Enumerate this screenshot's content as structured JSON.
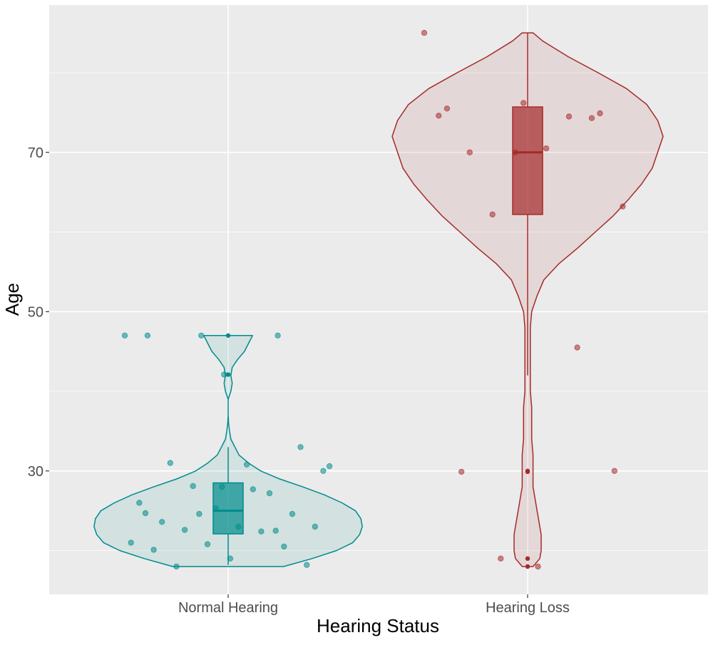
{
  "chart_data": {
    "type": "violin",
    "xlabel": "Hearing Status",
    "ylabel": "Age",
    "categories": [
      "Normal Hearing",
      "Hearing Loss"
    ],
    "ylim": [
      14.5,
      88.5
    ],
    "yticks": [
      30,
      50,
      70
    ],
    "grid": true,
    "legend": "none",
    "groups": [
      {
        "category": "Normal Hearing",
        "color": "#008B8B",
        "box": {
          "min": 18.2,
          "q1": 22.1,
          "median": 25.0,
          "q3": 28.5,
          "max": 33.0
        },
        "outliers": [
          42.1,
          47.0
        ],
        "violin": [
          [
            18.0,
            0.41
          ],
          [
            19.0,
            0.62
          ],
          [
            20.0,
            0.8
          ],
          [
            21.0,
            0.92
          ],
          [
            22.0,
            0.97
          ],
          [
            23.0,
            0.99
          ],
          [
            24.0,
            0.98
          ],
          [
            25.0,
            0.94
          ],
          [
            26.0,
            0.84
          ],
          [
            27.0,
            0.71
          ],
          [
            28.0,
            0.55
          ],
          [
            29.0,
            0.38
          ],
          [
            30.0,
            0.24
          ],
          [
            31.0,
            0.15
          ],
          [
            32.0,
            0.08
          ],
          [
            33.0,
            0.05
          ],
          [
            34.0,
            0.02
          ],
          [
            35.0,
            0.01
          ],
          [
            36.0,
            0.003
          ],
          [
            37.0,
            0.0
          ],
          [
            38.0,
            0.0
          ],
          [
            39.0,
            0.0
          ],
          [
            40.0,
            0.02
          ],
          [
            41.0,
            0.03
          ],
          [
            42.0,
            0.02
          ],
          [
            43.0,
            0.03
          ],
          [
            44.0,
            0.07
          ],
          [
            45.0,
            0.12
          ],
          [
            46.0,
            0.15
          ],
          [
            47.0,
            0.18
          ]
        ],
        "points": [
          [
            47.1,
            47.0
          ],
          [
            46.9,
            47.0
          ],
          [
            47.0,
            47.0
          ],
          [
            47.0,
            47.0
          ],
          [
            42.3,
            42.1
          ],
          [
            33.6,
            33.0
          ],
          [
            33.2,
            31.0
          ],
          [
            30.2,
            30.8
          ],
          [
            30.1,
            30.0
          ],
          [
            28.2,
            28.1
          ],
          [
            27.0,
            27.2
          ],
          [
            27.2,
            26.0
          ],
          [
            25.4,
            25.3
          ],
          [
            24.9,
            24.6
          ],
          [
            24.1,
            23.6
          ],
          [
            23.5,
            23.0
          ],
          [
            23.3,
            23.0
          ],
          [
            22.9,
            22.6
          ],
          [
            22.7,
            22.4
          ],
          [
            21.1,
            21.0
          ],
          [
            21.0,
            20.8
          ],
          [
            20.8,
            20.5
          ],
          [
            20.3,
            20.1
          ],
          [
            20.1,
            19.0
          ],
          [
            18.9,
            18.2
          ],
          [
            18.7,
            18.0
          ],
          [
            27.1,
            27.7
          ],
          [
            29.9,
            30.6
          ],
          [
            26.9,
            24.6
          ],
          [
            23.0,
            22.5
          ],
          [
            25.1,
            24.7
          ],
          [
            28.3,
            28.0
          ]
        ]
      },
      {
        "category": "Hearing Loss",
        "color": "#A52A2A",
        "box": {
          "min": 42.0,
          "q1": 62.2,
          "median": 70.0,
          "q3": 75.7,
          "max": 85.0
        },
        "outliers": [
          18.0,
          19.0,
          29.9,
          30.0
        ],
        "violin": [
          [
            18.0,
            0.04
          ],
          [
            19.0,
            0.09
          ],
          [
            20.0,
            0.1
          ],
          [
            21.0,
            0.1
          ],
          [
            22.0,
            0.1
          ],
          [
            23.0,
            0.09
          ],
          [
            24.0,
            0.08
          ],
          [
            25.0,
            0.07
          ],
          [
            26.0,
            0.06
          ],
          [
            27.0,
            0.05
          ],
          [
            28.0,
            0.04
          ],
          [
            29.0,
            0.04
          ],
          [
            30.0,
            0.04
          ],
          [
            32.0,
            0.04
          ],
          [
            34.0,
            0.03
          ],
          [
            36.0,
            0.03
          ],
          [
            38.0,
            0.03
          ],
          [
            40.0,
            0.02
          ],
          [
            42.0,
            0.02
          ],
          [
            44.0,
            0.02
          ],
          [
            46.0,
            0.02
          ],
          [
            48.0,
            0.02
          ],
          [
            50.0,
            0.03
          ],
          [
            52.0,
            0.07
          ],
          [
            54.0,
            0.12
          ],
          [
            56.0,
            0.23
          ],
          [
            58.0,
            0.37
          ],
          [
            60.0,
            0.5
          ],
          [
            62.0,
            0.63
          ],
          [
            64.0,
            0.74
          ],
          [
            66.0,
            0.84
          ],
          [
            68.0,
            0.92
          ],
          [
            70.0,
            0.96
          ],
          [
            72.0,
            1.0
          ],
          [
            74.0,
            0.96
          ],
          [
            76.0,
            0.88
          ],
          [
            78.0,
            0.73
          ],
          [
            80.0,
            0.52
          ],
          [
            82.0,
            0.3
          ],
          [
            84.0,
            0.11
          ],
          [
            85.0,
            0.04
          ]
        ],
        "points": [
          [
            85.0,
            85.0
          ],
          [
            17.9,
            19.0
          ],
          [
            41.6,
            45.5
          ],
          [
            76.0,
            75.5
          ],
          [
            75.6,
            76.2
          ],
          [
            75.0,
            74.9
          ],
          [
            70.2,
            70.0
          ],
          [
            69.6,
            70.5
          ],
          [
            61.6,
            63.2
          ],
          [
            63.1,
            62.2
          ],
          [
            76.3,
            74.5
          ],
          [
            74.4,
            74.6
          ],
          [
            69.8,
            70.0
          ],
          [
            75.3,
            74.3
          ],
          [
            30.0,
            29.9
          ],
          [
            19.0,
            18.0
          ],
          [
            30.0,
            30.0
          ]
        ]
      }
    ]
  }
}
